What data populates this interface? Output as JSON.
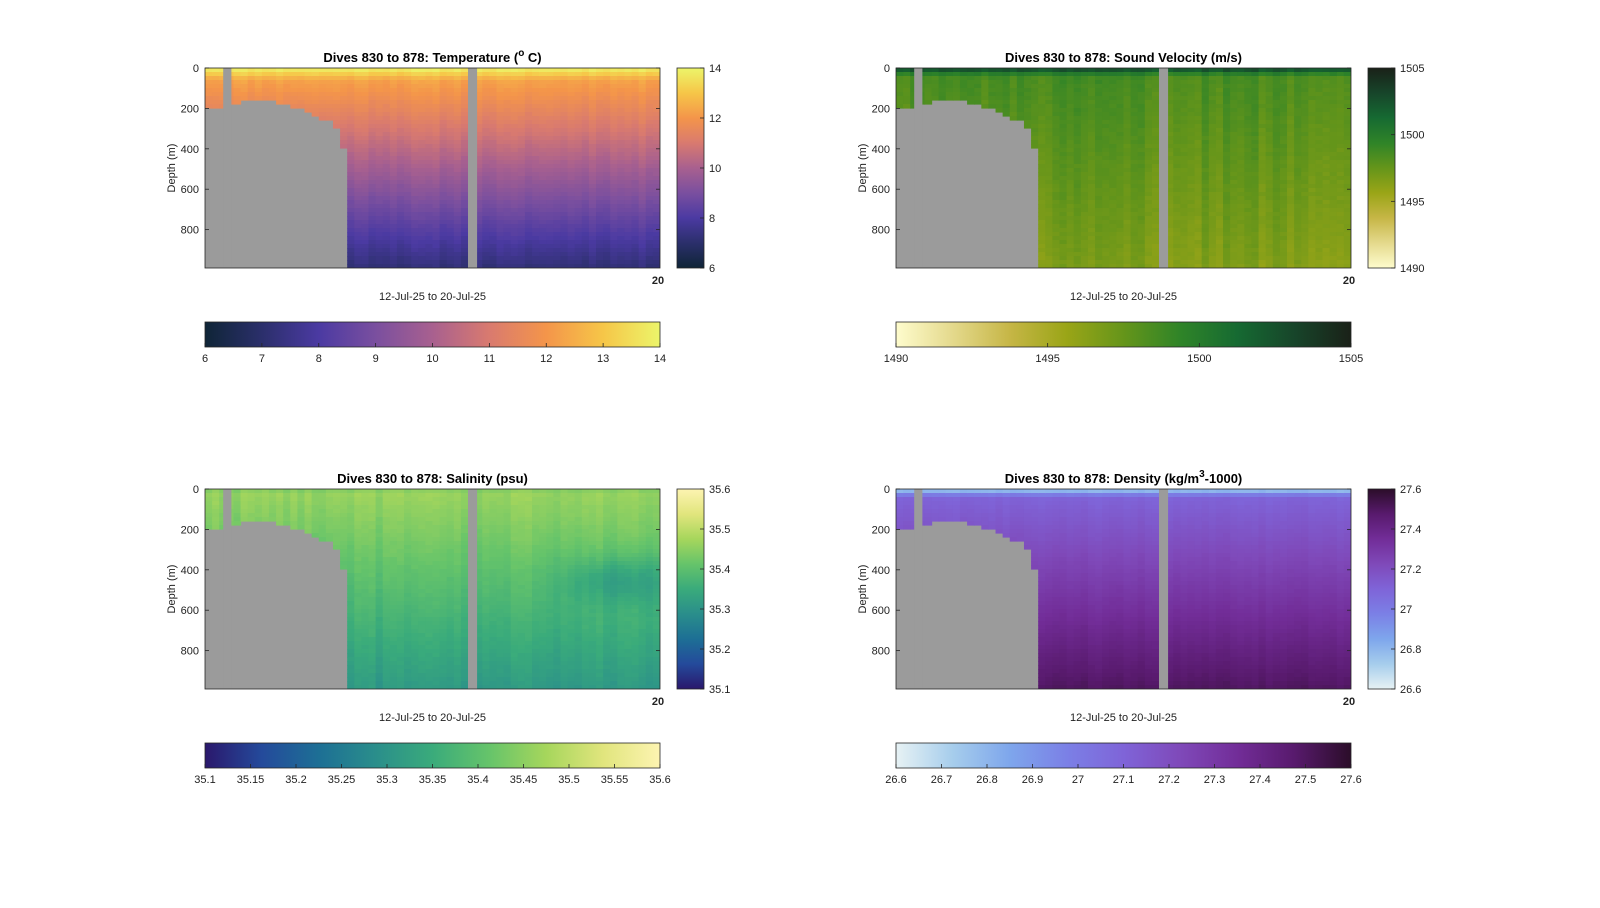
{
  "figure": {
    "background": "#ffffff",
    "mask_color": "#9b9b9b"
  },
  "chart_data": [
    {
      "type": "heatmap",
      "id": "temp",
      "title": "Dives 830 to 878: Temperature (°C)",
      "title_parts": [
        "Dives 830 to 878: Temperature (",
        "o",
        " C)"
      ],
      "xlabel": "12-Jul-25 to 20-Jul-25",
      "x_corner_tick": "20",
      "ylabel": "Depth (m)",
      "ylim": [
        0,
        990
      ],
      "y_ticks": [
        0,
        200,
        400,
        600,
        800
      ],
      "color_label": "Temperature",
      "clim": [
        6,
        14
      ],
      "colorbar_ticks_vertical": [
        6,
        8,
        10,
        12,
        14
      ],
      "colorbar_ticks_horizontal": [
        6,
        7,
        8,
        9,
        10,
        11,
        12,
        13,
        14
      ],
      "colormap": [
        "#0f2537",
        "#2b2f6b",
        "#4b3aa2",
        "#7a4f9f",
        "#a8608f",
        "#d97a6f",
        "#f4954a",
        "#f6c648",
        "#ecf56a"
      ],
      "profile": {
        "surface": 14,
        "mixed_layer_depth": 60,
        "gradient_top": 12.3,
        "bottom": 7.2,
        "variability": 0.35
      },
      "anomaly": null
    },
    {
      "type": "heatmap",
      "id": "sv",
      "title": "Dives 830 to 878: Sound Velocity (m/s)",
      "title_parts": [
        "Dives 830 to 878: Sound Velocity (m/s)"
      ],
      "xlabel": "12-Jul-25 to 20-Jul-25",
      "x_corner_tick": "20",
      "ylabel": "Depth (m)",
      "ylim": [
        0,
        990
      ],
      "y_ticks": [
        0,
        200,
        400,
        600,
        800
      ],
      "color_label": "Sound Velocity",
      "clim": [
        1490,
        1505
      ],
      "colorbar_ticks_vertical": [
        1490,
        1495,
        1500,
        1505
      ],
      "colorbar_ticks_horizontal": [
        1490,
        1495,
        1500,
        1505
      ],
      "colormap": [
        "#fefccd",
        "#e4d98c",
        "#c6b646",
        "#9aa517",
        "#65951a",
        "#2f8428",
        "#166a32",
        "#17452a",
        "#1a2118"
      ],
      "profile": {
        "surface": 1503.5,
        "mixed_layer_depth": 40,
        "gradient_top": 1498.5,
        "bottom": 1496.5,
        "variability": 1.3
      },
      "anomaly": null
    },
    {
      "type": "heatmap",
      "id": "sal",
      "title": "Dives 830 to 878: Salinity (psu)",
      "title_parts": [
        "Dives 830 to 878: Salinity (psu)"
      ],
      "xlabel": "12-Jul-25 to 20-Jul-25",
      "x_corner_tick": "20",
      "ylabel": "Depth (m)",
      "ylim": [
        0,
        990
      ],
      "y_ticks": [
        0,
        200,
        400,
        600,
        800
      ],
      "color_label": "Salinity",
      "clim": [
        35.1,
        35.6
      ],
      "colorbar_ticks_vertical": [
        35.1,
        35.2,
        35.3,
        35.4,
        35.5,
        35.6
      ],
      "colorbar_ticks_horizontal": [
        35.1,
        35.15,
        35.2,
        35.25,
        35.3,
        35.35,
        35.4,
        35.45,
        35.5,
        35.55,
        35.6
      ],
      "colormap": [
        "#2a186c",
        "#244a9b",
        "#1d6f95",
        "#2a8e8b",
        "#3aab7b",
        "#66c46a",
        "#a6d65c",
        "#e1e57d",
        "#fdf4b1"
      ],
      "profile": {
        "surface": 35.44,
        "mixed_layer_depth": 30,
        "gradient_top": 35.46,
        "bottom": 35.31,
        "variability": 0.03
      },
      "anomaly": {
        "depth": 450,
        "x_fraction": 0.92,
        "delta": -0.07
      }
    },
    {
      "type": "heatmap",
      "id": "dens",
      "title": "Dives 830 to 878: Density (kg/m³-1000)",
      "title_parts": [
        "Dives 830 to 878: Density (kg/m",
        "3",
        "-1000)"
      ],
      "xlabel": "12-Jul-25 to 20-Jul-25",
      "x_corner_tick": "20",
      "ylabel": "Depth (m)",
      "ylim": [
        0,
        990
      ],
      "y_ticks": [
        0,
        200,
        400,
        600,
        800
      ],
      "color_label": "Density",
      "clim": [
        26.6,
        27.6
      ],
      "colorbar_ticks_vertical": [
        26.6,
        26.8,
        27,
        27.2,
        27.4,
        27.6
      ],
      "colorbar_ticks_horizontal": [
        26.6,
        26.7,
        26.8,
        26.9,
        27,
        27.1,
        27.2,
        27.3,
        27.4,
        27.5,
        27.6
      ],
      "colormap": [
        "#e7f2f4",
        "#a6cdec",
        "#7ea6ec",
        "#7b80e6",
        "#7f64d8",
        "#7f49b9",
        "#722d98",
        "#581a6d",
        "#2b0d29"
      ],
      "profile": {
        "surface": 26.7,
        "mixed_layer_depth": 40,
        "gradient_top": 27.1,
        "bottom": 27.5,
        "variability": 0.03
      },
      "anomaly": null
    }
  ]
}
